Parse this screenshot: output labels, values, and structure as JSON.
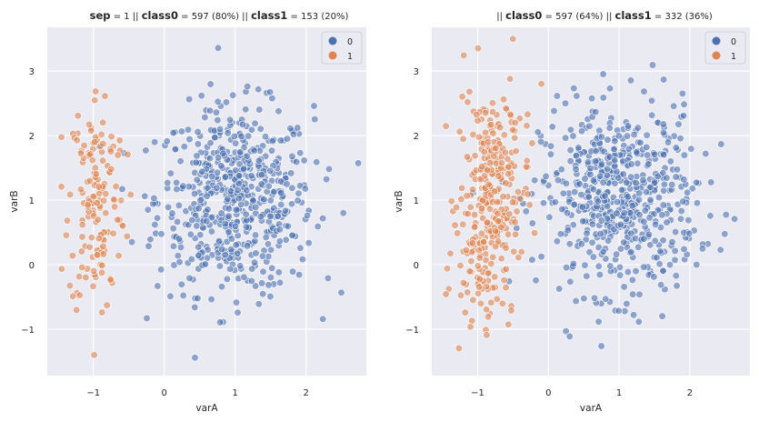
{
  "figure": {
    "panels": [
      {
        "title": {
          "sep_label": "sep",
          "sep_value": " = 1 || ",
          "c0_label": "class0",
          "c0_value": " = 597 (80%)  || ",
          "c1_label": "class1",
          "c1_value": " = 153 (20%)"
        }
      },
      {
        "title": {
          "sep_label": "",
          "sep_value": "|| ",
          "c0_label": "class0",
          "c0_value": " = 597 (64%)  || ",
          "c1_label": "class1",
          "c1_value": " = 332 (36%)"
        }
      }
    ]
  },
  "chart_data": [
    {
      "type": "scatter",
      "xlabel": "varA",
      "ylabel": "varB",
      "xlim": [
        -1.65,
        2.85
      ],
      "ylim": [
        -1.72,
        3.68
      ],
      "xticks": [
        -1,
        0,
        1,
        2
      ],
      "yticks": [
        -1,
        0,
        1,
        2,
        3
      ],
      "tick_labels_x": [
        "−1",
        "0",
        "1",
        "2"
      ],
      "tick_labels_y": [
        "−1",
        "0",
        "1",
        "2",
        "3"
      ],
      "grid": true,
      "legend_position": "top-right",
      "legend": [
        "0",
        "1"
      ],
      "colors": {
        "0": "#4c72b0",
        "1": "#dd8452"
      },
      "series": [
        {
          "name": "0",
          "count": 597,
          "center": [
            1.0,
            1.0
          ],
          "spread": [
            0.55,
            0.72
          ]
        },
        {
          "name": "1",
          "count": 153,
          "center": [
            -0.95,
            1.0
          ],
          "spread": [
            0.2,
            0.9
          ]
        }
      ]
    },
    {
      "type": "scatter",
      "xlabel": "varA",
      "ylabel": "varB",
      "xlim": [
        -1.65,
        2.85
      ],
      "ylim": [
        -1.72,
        3.68
      ],
      "xticks": [
        -1,
        0,
        1,
        2
      ],
      "yticks": [
        -1,
        0,
        1,
        2,
        3
      ],
      "tick_labels_x": [
        "−1",
        "0",
        "1",
        "2"
      ],
      "tick_labels_y": [
        "−1",
        "0",
        "1",
        "2",
        "3"
      ],
      "grid": true,
      "legend_position": "top-right",
      "legend": [
        "0",
        "1"
      ],
      "colors": {
        "0": "#4c72b0",
        "1": "#dd8452"
      },
      "series": [
        {
          "name": "0",
          "count": 597,
          "center": [
            1.0,
            1.0
          ],
          "spread": [
            0.55,
            0.72
          ]
        },
        {
          "name": "1",
          "count": 332,
          "center": [
            -0.9,
            1.0
          ],
          "spread": [
            0.2,
            0.9
          ]
        }
      ]
    }
  ]
}
